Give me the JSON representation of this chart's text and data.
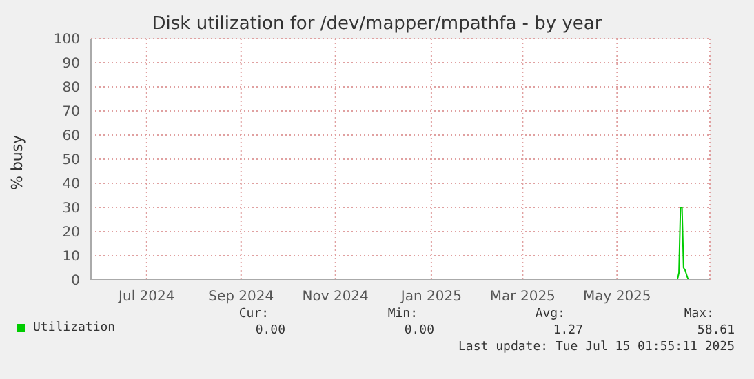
{
  "chart_data": {
    "type": "line",
    "title": "Disk utilization for /dev/mapper/mpathfa - by year",
    "ylabel": "% busy",
    "x": [
      "2025-05-08",
      "2025-06-24",
      "2025-06-25",
      "2025-06-26",
      "2025-06-27",
      "2025-06-28",
      "2025-06-29",
      "2025-07-01",
      "2025-07-14"
    ],
    "series": [
      {
        "name": "Utilization",
        "color": "#00cc00",
        "values": [
          0,
          0,
          3,
          30,
          30,
          5,
          4,
          0,
          0
        ]
      }
    ],
    "xlim": [
      "2024-06-10",
      "2025-07-15"
    ],
    "xticks": [
      {
        "value": "2024-07-16",
        "label": "Jul 2024"
      },
      {
        "value": "2024-09-15",
        "label": "Sep 2024"
      },
      {
        "value": "2024-11-15",
        "label": "Nov 2024"
      },
      {
        "value": "2025-01-16",
        "label": "Jan 2025"
      },
      {
        "value": "2025-03-16",
        "label": "Mar 2025"
      },
      {
        "value": "2025-05-16",
        "label": "May 2025"
      }
    ],
    "ylim": [
      0,
      100
    ],
    "yticks": [
      0,
      10,
      20,
      30,
      40,
      50,
      60,
      70,
      80,
      90,
      100
    ],
    "grid": true,
    "legend": "bottom left",
    "marker": "none",
    "annotations": [
      "Cur:",
      "Min:",
      "Avg:",
      "Max:",
      "0.00",
      "0.00",
      "1.27",
      "58.61",
      "Last update: Tue Jul 15 01:55:11 2025"
    ]
  }
}
